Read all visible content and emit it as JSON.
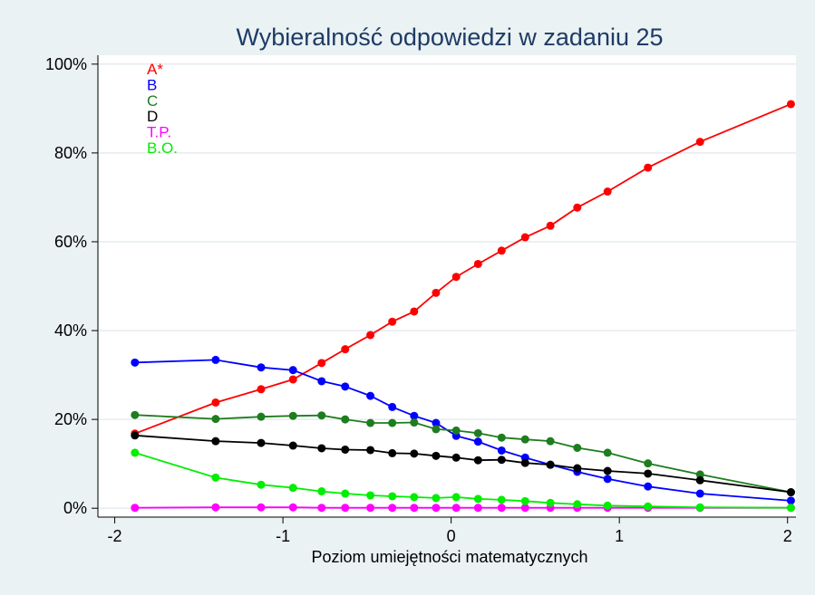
{
  "chart_data": {
    "type": "line",
    "title": "Wybieralność odpowiedzi w zadaniu 25",
    "xlabel": "Poziom umiejętności matematycznych",
    "ylabel": "",
    "xlim": [
      -2.1,
      2.05
    ],
    "ylim": [
      -0.02,
      1.02
    ],
    "x_ticks": [
      -2,
      -1,
      0,
      1,
      2
    ],
    "x_tick_labels": [
      "-2",
      "-1",
      "0",
      "1",
      "2"
    ],
    "y_ticks": [
      0,
      0.2,
      0.4,
      0.6,
      0.8,
      1.0
    ],
    "y_tick_labels": [
      "0%",
      "20%",
      "40%",
      "60%",
      "80%",
      "100%"
    ],
    "grid": "horizontal",
    "legend_position": "top-left",
    "x": [
      -1.88,
      -1.4,
      -1.13,
      -0.94,
      -0.77,
      -0.63,
      -0.48,
      -0.35,
      -0.22,
      -0.09,
      0.03,
      0.16,
      0.3,
      0.44,
      0.59,
      0.75,
      0.93,
      1.17,
      1.48,
      2.02
    ],
    "series": [
      {
        "name": "A*",
        "color": "#ff0000",
        "values": [
          0.168,
          0.238,
          0.268,
          0.29,
          0.327,
          0.358,
          0.39,
          0.42,
          0.443,
          0.485,
          0.521,
          0.55,
          0.58,
          0.61,
          0.636,
          0.677,
          0.713,
          0.767,
          0.825,
          0.91
        ]
      },
      {
        "name": "B",
        "color": "#0000ff",
        "values": [
          0.328,
          0.334,
          0.317,
          0.311,
          0.286,
          0.274,
          0.253,
          0.228,
          0.208,
          0.192,
          0.163,
          0.15,
          0.13,
          0.114,
          0.098,
          0.082,
          0.066,
          0.049,
          0.033,
          0.017
        ]
      },
      {
        "name": "C",
        "color": "#1e7d1e",
        "values": [
          0.21,
          0.201,
          0.206,
          0.208,
          0.209,
          0.2,
          0.192,
          0.192,
          0.193,
          0.178,
          0.175,
          0.169,
          0.159,
          0.155,
          0.151,
          0.136,
          0.125,
          0.101,
          0.076,
          0.036
        ]
      },
      {
        "name": "D",
        "color": "#000000",
        "values": [
          0.164,
          0.151,
          0.147,
          0.141,
          0.135,
          0.132,
          0.131,
          0.124,
          0.123,
          0.118,
          0.114,
          0.108,
          0.109,
          0.102,
          0.098,
          0.09,
          0.084,
          0.078,
          0.063,
          0.036
        ]
      },
      {
        "name": "T.P.",
        "color": "#ff00ff",
        "values": [
          0.001,
          0.002,
          0.002,
          0.002,
          0.001,
          0.001,
          0.001,
          0.001,
          0.001,
          0.001,
          0.001,
          0.001,
          0.001,
          0.001,
          0.001,
          0.001,
          0.001,
          0.001,
          0.001,
          0.001
        ]
      },
      {
        "name": "B.O.",
        "color": "#00ee00",
        "values": [
          0.125,
          0.069,
          0.053,
          0.046,
          0.038,
          0.033,
          0.029,
          0.027,
          0.025,
          0.023,
          0.025,
          0.021,
          0.019,
          0.016,
          0.012,
          0.009,
          0.006,
          0.004,
          0.002,
          0.001
        ]
      }
    ]
  }
}
